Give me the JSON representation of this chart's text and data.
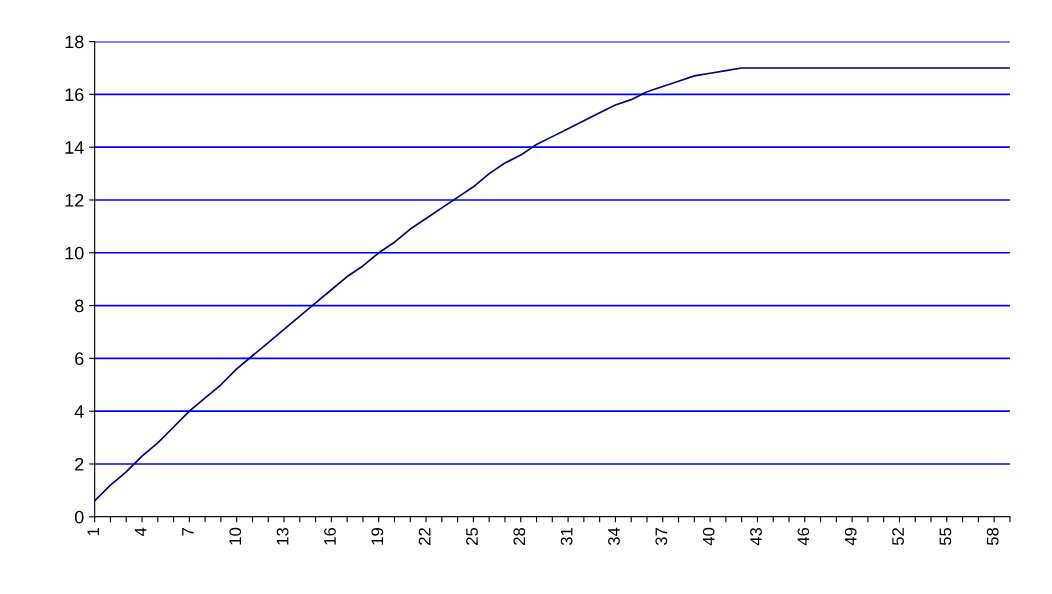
{
  "chart_data": {
    "type": "line",
    "categories": [
      "1",
      null,
      null,
      "4",
      null,
      null,
      "7",
      null,
      null,
      "10",
      null,
      null,
      "13",
      null,
      null,
      "16",
      null,
      null,
      "19",
      null,
      null,
      "22",
      null,
      null,
      "25",
      null,
      null,
      "28",
      null,
      null,
      "31",
      null,
      null,
      "34",
      null,
      null,
      "37",
      null,
      null,
      "40",
      null,
      null,
      "43",
      null,
      null,
      "46",
      null,
      null,
      "49",
      null,
      null,
      "52",
      null,
      null,
      "55",
      null,
      null,
      "58",
      null
    ],
    "series": [
      {
        "color": "#000080",
        "values": [
          0.6,
          1.2,
          1.7,
          2.3,
          2.8,
          3.4,
          4.0,
          4.5,
          5.0,
          5.6,
          6.1,
          6.6,
          7.1,
          7.6,
          8.1,
          8.6,
          9.1,
          9.5,
          10.0,
          10.4,
          10.9,
          11.3,
          11.7,
          12.1,
          12.5,
          13.0,
          13.4,
          13.7,
          14.1,
          14.4,
          14.7,
          15.0,
          15.3,
          15.6,
          15.8,
          16.1,
          16.3,
          16.5,
          16.7,
          16.8,
          16.9,
          17.0,
          17.0,
          17.0,
          17.0,
          17.0,
          17.0,
          17.0,
          17.0,
          17.0,
          17.0,
          17.0,
          17.0,
          17.0,
          17.0,
          17.0,
          17.0,
          17.0,
          17.0
        ]
      }
    ],
    "ylim": [
      0,
      18
    ],
    "yticks": [
      0,
      2,
      4,
      6,
      8,
      10,
      12,
      14,
      16,
      18
    ],
    "grid": "y",
    "legend": false,
    "marker": "none",
    "line_style": "solid"
  }
}
